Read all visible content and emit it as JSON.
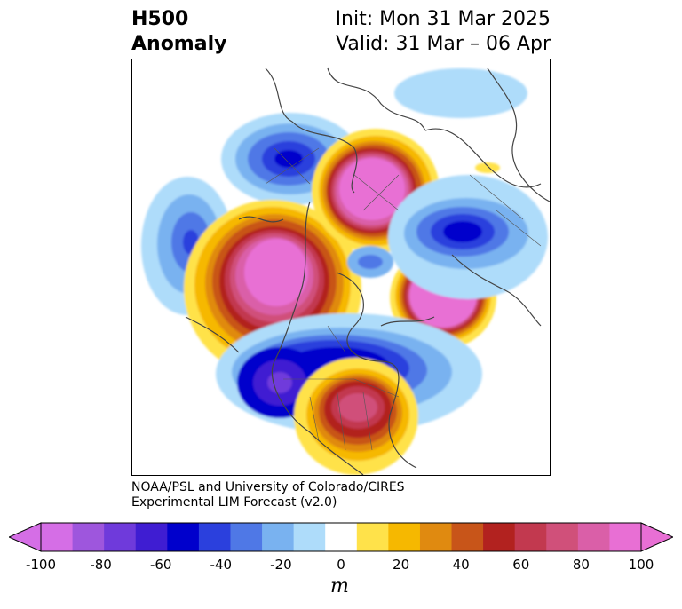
{
  "header": {
    "title_line1": "H500",
    "title_line2": "Anomaly",
    "init": "Init: Mon 31 Mar 2025",
    "valid": "Valid: 31 Mar – 06 Apr"
  },
  "credit": {
    "line1": "NOAA/PSL and University of Colorado/CIRES",
    "line2": "Experimental LIM Forecast (v2.0)"
  },
  "colorbar": {
    "unit": "m",
    "ticks": [
      "-100",
      "-80",
      "-60",
      "-40",
      "-20",
      "0",
      "20",
      "40",
      "60",
      "80",
      "100"
    ],
    "bins": [
      "#d56ee6",
      "#9e56dd",
      "#6f3adb",
      "#3f1dd2",
      "#0000cc",
      "#2b40dd",
      "#4f78e6",
      "#79b2f0",
      "#aedcfa",
      "#ffffff",
      "#ffe24a",
      "#f6b800",
      "#e08a10",
      "#c85519",
      "#b2221f",
      "#c2394f",
      "#d0507a",
      "#da5fa8",
      "#e86fd4"
    ],
    "extend_low_color": "#d56ee6",
    "extend_high_color": "#e86fd4"
  },
  "map": {
    "projection": "north-polar stereographic",
    "field": "500 hPa geopotential height anomaly (m)"
  }
}
